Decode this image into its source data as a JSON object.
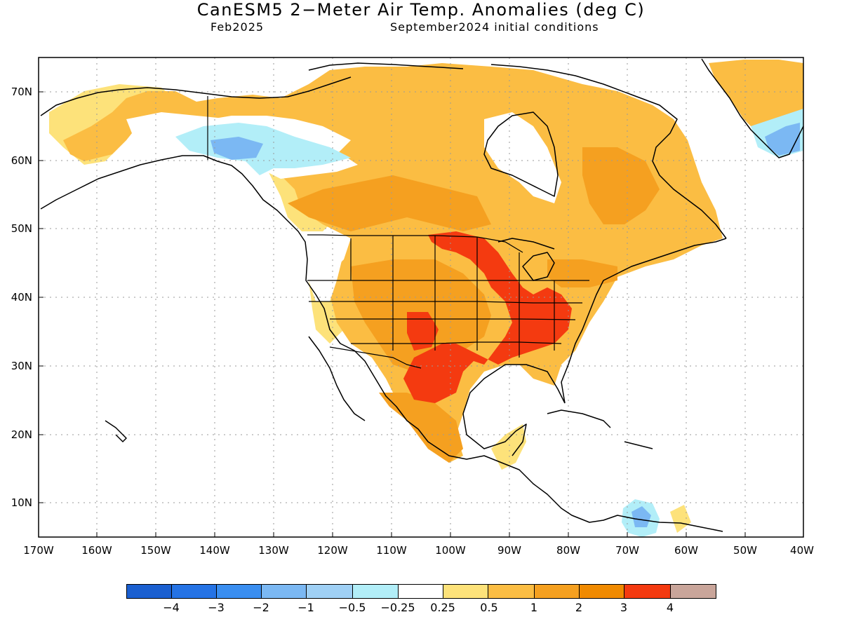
{
  "header": {
    "title": "CanESM5 2−Meter Air Temp. Anomalies (deg C)",
    "valid_month": "Feb2025",
    "init_conditions": "September2024 initial conditions"
  },
  "axes": {
    "lat_labels": [
      "70N",
      "60N",
      "50N",
      "40N",
      "30N",
      "20N",
      "10N"
    ],
    "lon_labels": [
      "170W",
      "160W",
      "150W",
      "140W",
      "130W",
      "120W",
      "110W",
      "100W",
      "90W",
      "80W",
      "70W",
      "60W",
      "50W",
      "40W"
    ],
    "lon_range": [
      -170,
      -40
    ],
    "lat_range": [
      5,
      75
    ],
    "grid": "dotted"
  },
  "legend": {
    "colors": [
      "#1a5fd0",
      "#2573e5",
      "#3a8ef0",
      "#7bb8f3",
      "#9fd0f5",
      "#b2eef8",
      "#ffffff",
      "#fde27a",
      "#fbbd43",
      "#f5a020",
      "#f08a00",
      "#f43a10",
      "#c9a59a",
      "#7b5042"
    ],
    "labels": [
      "−4",
      "−3",
      "−2",
      "−1",
      "−0.5",
      "−0.25",
      "0.25",
      "0.5",
      "1",
      "2",
      "3",
      "4"
    ]
  },
  "colors": {
    "anom_pos_weak": "#fde27a",
    "anom_pos_1": "#fbbd43",
    "anom_pos_2": "#f5a020",
    "anom_pos_3": "#f43a10",
    "anom_neg_weak": "#b2eef8",
    "anom_neg_1": "#7bb8f3",
    "anom_neg_2": "#3a8ef0"
  }
}
